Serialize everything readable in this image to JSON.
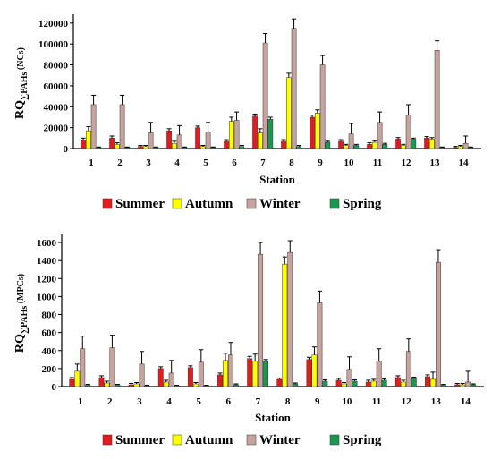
{
  "colors": {
    "Summer": "#e41a1c",
    "Autumn": "#ffff00",
    "Winter": "#c7a39d",
    "Spring": "#1a9850"
  },
  "chart_data": [
    {
      "type": "bar",
      "ylabel_main": "RQ",
      "ylabel_sub": "∑PAHs",
      "ylabel_tail": " (NCs)",
      "xlabel": "Station",
      "categories": [
        "1",
        "2",
        "3",
        "4",
        "5",
        "6",
        "7",
        "8",
        "9",
        "10",
        "11",
        "12",
        "13",
        "14"
      ],
      "yticks": [
        0,
        20000,
        40000,
        60000,
        80000,
        100000,
        120000
      ],
      "ytick_labels": [
        "0",
        "20000",
        "40000",
        "60000",
        "80000",
        "100000",
        "120000"
      ],
      "ylim": [
        0,
        125000
      ],
      "legend_labels": [
        "Summer",
        "Autumn",
        "Winter",
        "Spring"
      ],
      "legend_position": "bottom",
      "series": [
        {
          "name": "Summer",
          "values": [
            8000,
            10000,
            2000,
            17000,
            20000,
            7000,
            31000,
            7000,
            30000,
            7000,
            4000,
            9000,
            10000,
            1000
          ],
          "errors": [
            2000,
            2000,
            1000,
            2000,
            1500,
            1500,
            2000,
            1500,
            2000,
            1500,
            1500,
            1500,
            1500,
            1000
          ]
        },
        {
          "name": "Autumn",
          "values": [
            17000,
            4000,
            2000,
            5000,
            2000,
            26000,
            15000,
            68000,
            34000,
            3000,
            6000,
            3000,
            9000,
            2000
          ],
          "errors": [
            4000,
            1500,
            1000,
            2000,
            1000,
            4000,
            4000,
            4000,
            3000,
            1000,
            1500,
            1000,
            1500,
            1000
          ]
        },
        {
          "name": "Winter",
          "values": [
            42000,
            42000,
            15000,
            13000,
            16000,
            27000,
            101000,
            115000,
            80000,
            14000,
            25000,
            32000,
            94000,
            5000
          ],
          "errors": [
            9000,
            9000,
            10000,
            9000,
            9000,
            8000,
            9000,
            9000,
            9000,
            10000,
            10000,
            10000,
            9000,
            7000
          ]
        },
        {
          "name": "Spring",
          "values": [
            1000,
            1000,
            1000,
            1000,
            1000,
            2000,
            28000,
            2000,
            6000,
            3000,
            4000,
            9000,
            1000,
            1000
          ],
          "errors": [
            500,
            500,
            500,
            500,
            500,
            1000,
            2000,
            1000,
            1000,
            1000,
            1000,
            1000,
            500,
            500
          ]
        }
      ]
    },
    {
      "type": "bar",
      "ylabel_main": "RQ",
      "ylabel_sub": "∑PAHs",
      "ylabel_tail": " (MPCs)",
      "xlabel": "Station",
      "categories": [
        "1",
        "2",
        "3",
        "4",
        "5",
        "6",
        "7",
        "8",
        "9",
        "10",
        "11",
        "12",
        "13",
        "14"
      ],
      "yticks": [
        0,
        200,
        400,
        600,
        800,
        1000,
        1200,
        1400,
        1600
      ],
      "ytick_labels": [
        "0",
        "200",
        "400",
        "600",
        "800",
        "1000",
        "1200",
        "1400",
        "1600"
      ],
      "ylim": [
        0,
        1650
      ],
      "legend_labels": [
        "Summer",
        "Autumn",
        "Winter",
        "Spring"
      ],
      "legend_position": "bottom",
      "series": [
        {
          "name": "Summer",
          "values": [
            80,
            100,
            20,
            200,
            210,
            130,
            310,
            80,
            300,
            70,
            50,
            100,
            110,
            20
          ],
          "errors": [
            20,
            20,
            15,
            20,
            20,
            20,
            25,
            15,
            25,
            20,
            20,
            20,
            20,
            15
          ]
        },
        {
          "name": "Autumn",
          "values": [
            170,
            40,
            30,
            50,
            30,
            290,
            280,
            1360,
            350,
            30,
            60,
            50,
            80,
            20
          ],
          "errors": [
            80,
            20,
            15,
            20,
            15,
            80,
            80,
            80,
            90,
            15,
            20,
            20,
            80,
            15
          ]
        },
        {
          "name": "Winter",
          "values": [
            420,
            430,
            250,
            150,
            270,
            350,
            1470,
            1490,
            930,
            190,
            280,
            390,
            1380,
            50
          ],
          "errors": [
            140,
            140,
            140,
            140,
            140,
            140,
            130,
            130,
            130,
            140,
            140,
            140,
            140,
            120
          ]
        },
        {
          "name": "Spring",
          "values": [
            20,
            20,
            10,
            10,
            10,
            20,
            280,
            30,
            60,
            60,
            70,
            90,
            20,
            20
          ],
          "errors": [
            5,
            5,
            5,
            5,
            5,
            10,
            20,
            10,
            15,
            15,
            15,
            15,
            5,
            10
          ]
        }
      ]
    }
  ]
}
